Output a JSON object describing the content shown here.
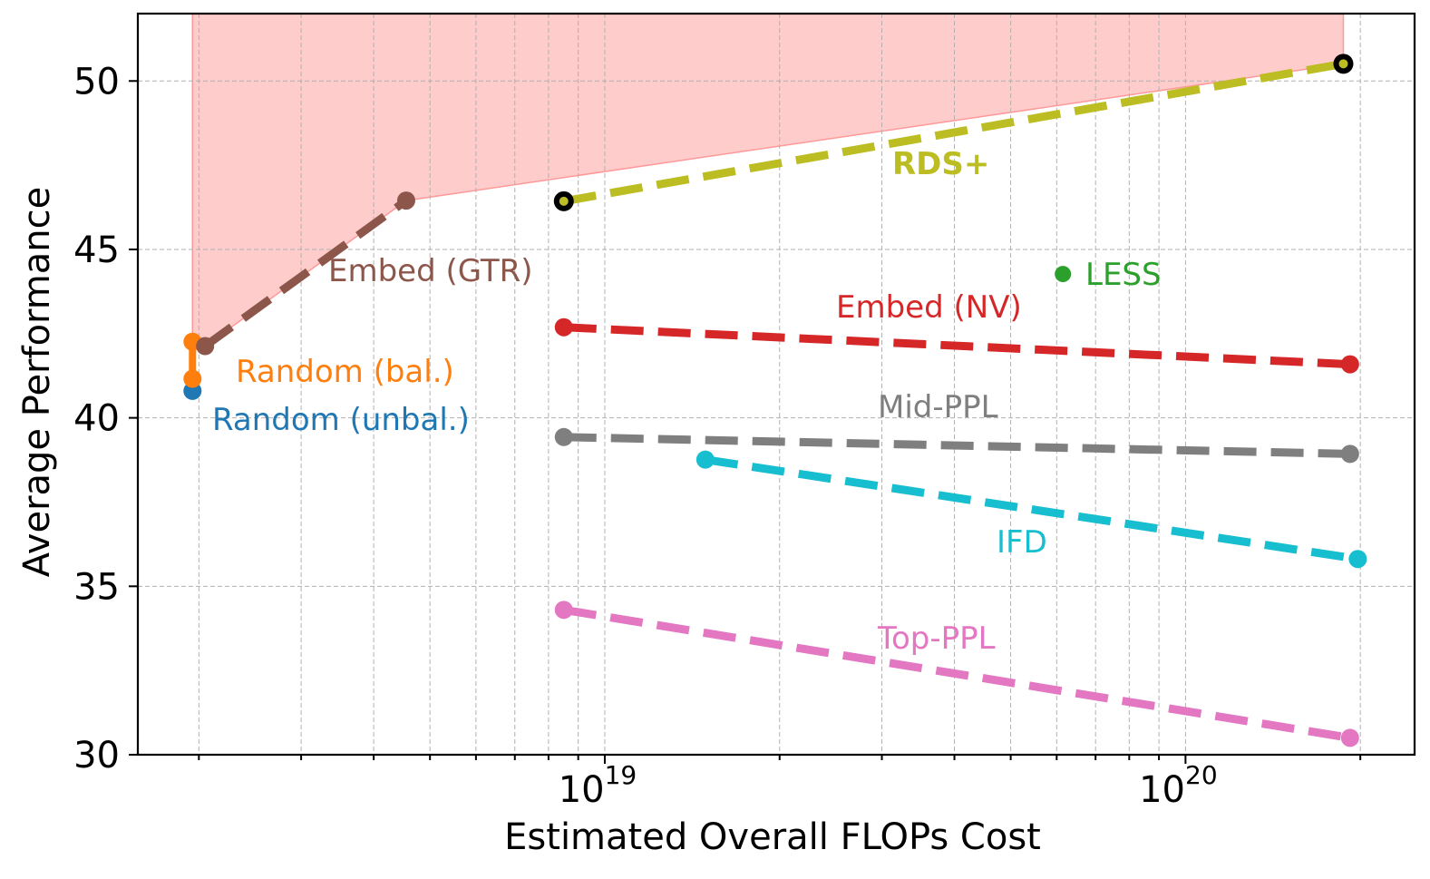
{
  "chart_data": {
    "type": "line",
    "title": "",
    "xlabel": "Estimated Overall FLOPs Cost",
    "ylabel": "Average Performance",
    "xscale": "log",
    "xlim": [
      1.57e+18,
      2.48e+20
    ],
    "ylim": [
      30,
      52
    ],
    "grid": true,
    "legend": "none (inline labels)",
    "x_major_ticks": [
      {
        "value": 1e+19,
        "base": "10",
        "exp": "19"
      },
      {
        "value": 1e+20,
        "base": "10",
        "exp": "20"
      }
    ],
    "y_ticks": [
      30,
      35,
      40,
      45,
      50
    ],
    "frontier_fill": {
      "color": "#ffcccc",
      "edge_color": "#ff9999",
      "points": [
        [
          1.95e+18,
          42.26
        ],
        [
          2.05e+18,
          42.13
        ],
        [
          4.55e+18,
          46.45
        ],
        [
          1.87e+20,
          50.51
        ]
      ]
    },
    "series": [
      {
        "name": "Random (unbal.)",
        "color": "#1f77b4",
        "style": "solid",
        "x": [
          1.95e+18
        ],
        "y": [
          40.8
        ]
      },
      {
        "name": "Random (bal.)",
        "color": "#ff7f0e",
        "style": "solid",
        "x": [
          1.95e+18,
          1.95e+18
        ],
        "y": [
          42.26,
          41.16
        ]
      },
      {
        "name": "Embed (GTR)",
        "color": "#8c564b",
        "style": "dashed",
        "x": [
          2.05e+18,
          4.55e+18
        ],
        "y": [
          42.13,
          46.45
        ]
      },
      {
        "name": "RDS+",
        "color": "#bcbd22",
        "style": "dashed",
        "bold_label": true,
        "marker_edge": "#000000",
        "x": [
          8.5e+18,
          1.87e+20
        ],
        "y": [
          46.43,
          50.51
        ]
      },
      {
        "name": "Embed (NV)",
        "color": "#d62728",
        "style": "dashed",
        "x": [
          8.5e+18,
          1.92e+20
        ],
        "y": [
          42.69,
          41.59
        ]
      },
      {
        "name": "Mid-PPL",
        "color": "#7f7f7f",
        "style": "dashed",
        "x": [
          8.5e+18,
          1.92e+20
        ],
        "y": [
          39.43,
          38.93
        ]
      },
      {
        "name": "IFD",
        "color": "#17becf",
        "style": "dashed",
        "x": [
          1.49e+19,
          1.98e+20
        ],
        "y": [
          38.76,
          35.81
        ]
      },
      {
        "name": "Top-PPL",
        "color": "#e377c2",
        "style": "dashed",
        "x": [
          8.5e+18,
          1.92e+20
        ],
        "y": [
          34.3,
          30.5
        ]
      },
      {
        "name": "LESS",
        "color": "#2ca02c",
        "style": "point",
        "x": [
          6.15e+19
        ],
        "y": [
          44.27
        ]
      }
    ]
  }
}
